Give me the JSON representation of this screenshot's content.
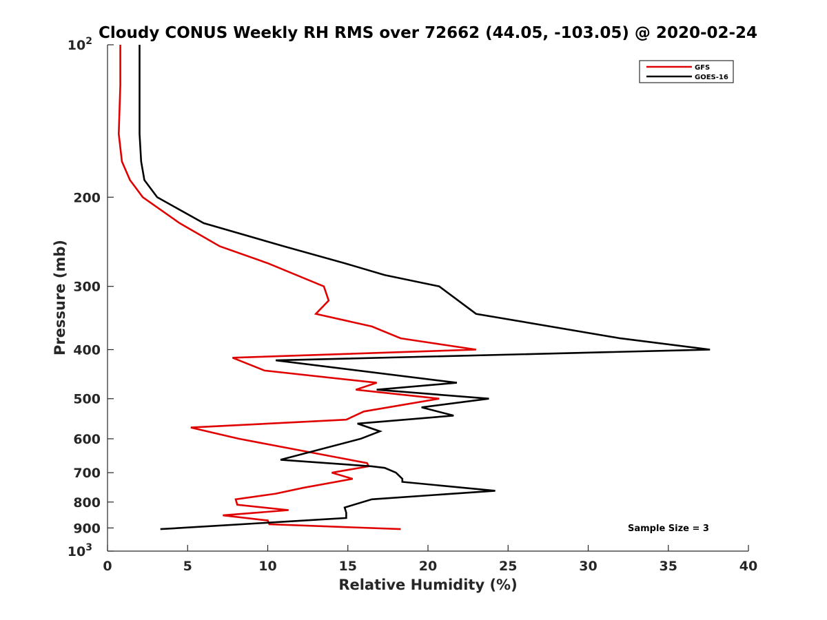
{
  "chart_data": {
    "type": "line",
    "title": "Cloudy CONUS Weekly RH RMS over 72662 (44.05, -103.05) @ 2020-02-24",
    "xlabel": "Relative Humidity (%)",
    "ylabel": "Pressure (mb)",
    "xlim": [
      0,
      40
    ],
    "ylim": [
      100,
      1000
    ],
    "yscale": "log",
    "y_reversed": true,
    "grid": false,
    "legend_position": "top-right",
    "annotation": "Sample Size = 3",
    "x_ticks": [
      "0",
      "5",
      "10",
      "15",
      "20",
      "25",
      "30",
      "35",
      "40"
    ],
    "y_ticks": [
      {
        "value": 100,
        "label": "10",
        "sup": "2"
      },
      {
        "value": 200,
        "label": "200"
      },
      {
        "value": 300,
        "label": "300"
      },
      {
        "value": 400,
        "label": "400"
      },
      {
        "value": 500,
        "label": "500"
      },
      {
        "value": 600,
        "label": "600"
      },
      {
        "value": 700,
        "label": "700"
      },
      {
        "value": 800,
        "label": "800"
      },
      {
        "value": 900,
        "label": "900"
      },
      {
        "value": 1000,
        "label": "10",
        "sup": "3"
      }
    ],
    "series": [
      {
        "name": "GFS",
        "color": "#e00000",
        "points": [
          [
            0.8,
            100
          ],
          [
            0.8,
            120
          ],
          [
            0.7,
            150
          ],
          [
            0.9,
            170
          ],
          [
            1.4,
            185
          ],
          [
            2.2,
            200
          ],
          [
            4.5,
            225
          ],
          [
            7.0,
            250
          ],
          [
            10.0,
            270
          ],
          [
            13.5,
            300
          ],
          [
            13.8,
            320
          ],
          [
            13.0,
            340
          ],
          [
            16.5,
            360
          ],
          [
            18.3,
            380
          ],
          [
            23.0,
            400
          ],
          [
            7.8,
            415
          ],
          [
            9.8,
            440
          ],
          [
            16.8,
            465
          ],
          [
            15.5,
            480
          ],
          [
            20.7,
            500
          ],
          [
            16.0,
            530
          ],
          [
            14.9,
            550
          ],
          [
            5.2,
            570
          ],
          [
            8.2,
            600
          ],
          [
            14.0,
            650
          ],
          [
            16.2,
            670
          ],
          [
            16.3,
            680
          ],
          [
            14.0,
            700
          ],
          [
            15.3,
            720
          ],
          [
            12.2,
            750
          ],
          [
            10.5,
            770
          ],
          [
            8.0,
            790
          ],
          [
            8.1,
            810
          ],
          [
            11.3,
            830
          ],
          [
            7.2,
            850
          ],
          [
            10.0,
            870
          ],
          [
            10.1,
            885
          ],
          [
            18.3,
            905
          ]
        ]
      },
      {
        "name": "GOES-16",
        "color": "#000000",
        "points": [
          [
            2.0,
            100
          ],
          [
            2.0,
            120
          ],
          [
            2.0,
            150
          ],
          [
            2.1,
            170
          ],
          [
            2.3,
            185
          ],
          [
            3.1,
            200
          ],
          [
            6.0,
            225
          ],
          [
            11.0,
            250
          ],
          [
            14.8,
            270
          ],
          [
            17.3,
            285
          ],
          [
            20.7,
            300
          ],
          [
            23.0,
            340
          ],
          [
            32.0,
            380
          ],
          [
            37.6,
            400
          ],
          [
            10.5,
            420
          ],
          [
            21.8,
            465
          ],
          [
            16.8,
            480
          ],
          [
            23.8,
            500
          ],
          [
            19.6,
            520
          ],
          [
            21.6,
            540
          ],
          [
            15.6,
            560
          ],
          [
            17.0,
            580
          ],
          [
            15.8,
            600
          ],
          [
            10.8,
            660
          ],
          [
            16.5,
            680
          ],
          [
            17.3,
            685
          ],
          [
            18.0,
            700
          ],
          [
            18.4,
            720
          ],
          [
            18.4,
            730
          ],
          [
            24.2,
            760
          ],
          [
            16.5,
            790
          ],
          [
            14.8,
            820
          ],
          [
            14.9,
            840
          ],
          [
            14.9,
            860
          ],
          [
            3.3,
            905
          ]
        ]
      }
    ]
  }
}
